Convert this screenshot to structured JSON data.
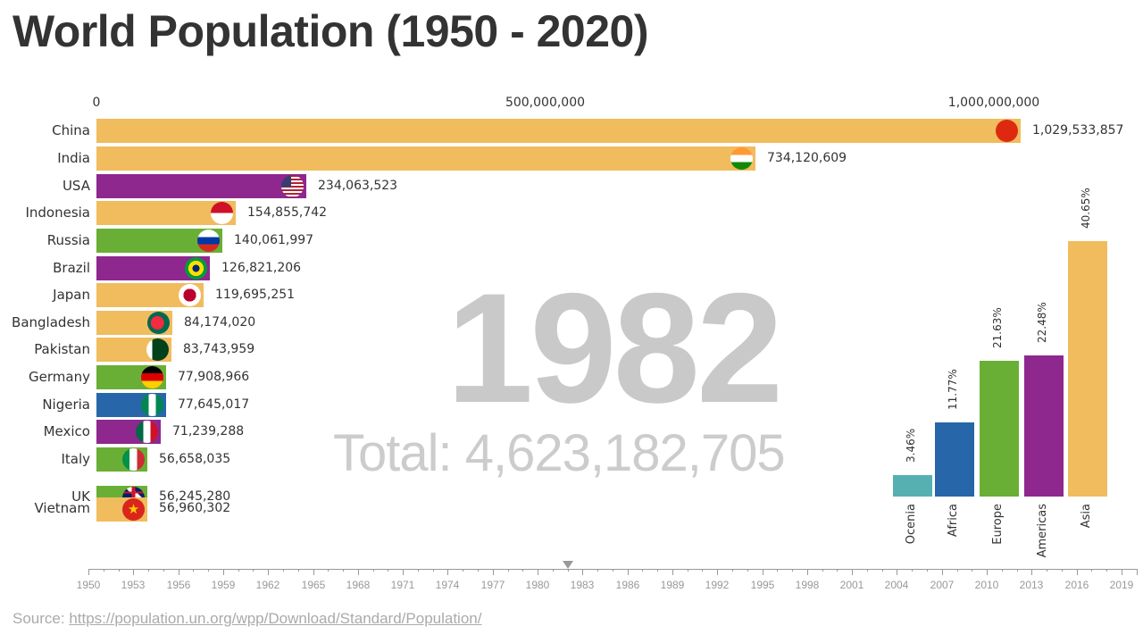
{
  "title": "World Population (1950 - 2020)",
  "year": "1982",
  "total_label": "Total: 4,623,182,705",
  "source": {
    "prefix": "Source: ",
    "link_text": "https://population.un.org/wpp/Download/Standard/Population/"
  },
  "colors": {
    "Asia": "#f0bc5e",
    "Americas": "#8e278e",
    "Europe": "#6aaf35",
    "Africa": "#2766a8",
    "Oceania": "#56b0b2"
  },
  "chart_data": [
    {
      "type": "bar",
      "orientation": "horizontal",
      "title": "World Population (1950 - 2020)",
      "subtitle": "1982",
      "annotation": "Total: 4,623,182,705",
      "x_axis_ticks": [
        "0",
        "500,000,000",
        "1,000,000,000"
      ],
      "xlim": [
        0,
        1100000000
      ],
      "categories": [
        "China",
        "India",
        "USA",
        "Indonesia",
        "Russia",
        "Brazil",
        "Japan",
        "Bangladesh",
        "Pakistan",
        "Germany",
        "Nigeria",
        "Mexico",
        "Italy",
        "UK",
        "Vietnam"
      ],
      "values": [
        1029533857,
        734120609,
        234063523,
        154855742,
        140061997,
        126821206,
        119695251,
        84174020,
        83743959,
        77908966,
        77645017,
        71239288,
        56658035,
        56245280,
        56960302
      ],
      "value_labels": [
        "1,029,533,857",
        "734,120,609",
        "234,063,523",
        "154,855,742",
        "140,061,997",
        "126,821,206",
        "119,695,251",
        "84,174,020",
        "83,743,959",
        "77,908,966",
        "77,645,017",
        "71,239,288",
        "56,658,035",
        "56,245,280",
        "56,960,302"
      ],
      "regions": [
        "Asia",
        "Asia",
        "Americas",
        "Asia",
        "Europe",
        "Americas",
        "Asia",
        "Asia",
        "Asia",
        "Europe",
        "Africa",
        "Americas",
        "Europe",
        "Europe",
        "Asia"
      ],
      "flags": [
        "china-flag",
        "india-flag",
        "usa-flag",
        "indonesia-flag",
        "russia-flag",
        "brazil-flag",
        "japan-flag",
        "bangladesh-flag",
        "pakistan-flag",
        "germany-flag",
        "nigeria-flag",
        "mexico-flag",
        "italy-flag",
        "uk-flag",
        "vietnam-flag"
      ],
      "grid": false
    },
    {
      "type": "bar",
      "orientation": "vertical",
      "title": "Share by continent",
      "categories": [
        "Ocenia",
        "Africa",
        "Europe",
        "Americas",
        "Asia"
      ],
      "values": [
        3.46,
        11.77,
        21.63,
        22.48,
        40.65
      ],
      "value_labels": [
        "3.46%",
        "11.77%",
        "21.63%",
        "22.48%",
        "40.65%"
      ],
      "colors": [
        "#56b0b2",
        "#2766a8",
        "#6aaf35",
        "#8e278e",
        "#f0bc5e"
      ],
      "ylim": [
        0,
        45
      ]
    }
  ],
  "timeline": {
    "start": 1950,
    "end": 2020,
    "current": 1982,
    "labels": [
      "1950",
      "1953",
      "1956",
      "1959",
      "1962",
      "1965",
      "1968",
      "1971",
      "1974",
      "1977",
      "1980",
      "1983",
      "1986",
      "1989",
      "1992",
      "1995",
      "1998",
      "2001",
      "2004",
      "2007",
      "2010",
      "2013",
      "2016",
      "2019"
    ]
  }
}
